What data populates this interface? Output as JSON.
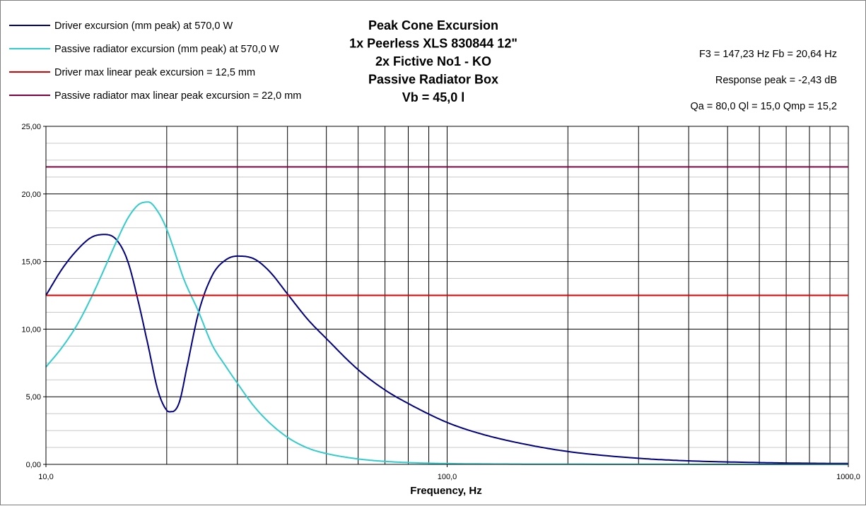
{
  "chart_data": {
    "type": "line",
    "title_lines": [
      "Peak Cone Excursion",
      "1x Peerless XLS 830844 12\"",
      "2x Fictive No1 - KO",
      "Passive Radiator Box",
      "Vb = 45,0 l"
    ],
    "xlabel": "Frequency, Hz",
    "ylabel": "",
    "x_scale": "log",
    "xlim": [
      10,
      1000
    ],
    "ylim": [
      0,
      25
    ],
    "grid": true,
    "legend_position": "top-left",
    "x_tick_labels": [
      {
        "value": 10,
        "label": "10,0"
      },
      {
        "value": 100,
        "label": "100,0"
      },
      {
        "value": 1000,
        "label": "1000,0"
      }
    ],
    "y_tick_labels": [
      {
        "value": 0,
        "label": "0,00"
      },
      {
        "value": 5,
        "label": "5,00"
      },
      {
        "value": 10,
        "label": "10,00"
      },
      {
        "value": 15,
        "label": "15,00"
      },
      {
        "value": 20,
        "label": "20,00"
      },
      {
        "value": 25,
        "label": "25,00"
      }
    ],
    "info_lines": [
      "F3 = 147,23 Hz  Fb = 20,64 Hz",
      "Response peak = -2,43 dB",
      "Qa = 80,0  Ql = 15,0  Qmp = 15,2"
    ],
    "series": [
      {
        "name": "Driver excursion (mm peak) at 570,0 W",
        "color": "#000080",
        "x": [
          10,
          11,
          12,
          13,
          14,
          15,
          16,
          17,
          18,
          19,
          20,
          20.6,
          21.5,
          22.5,
          24,
          26,
          28,
          30,
          33,
          36,
          40,
          45,
          50,
          60,
          70,
          80,
          100,
          120,
          150,
          200,
          300,
          400,
          600,
          800,
          1000
        ],
        "y": [
          12.5,
          14.5,
          15.9,
          16.8,
          17.0,
          16.6,
          15.0,
          12.0,
          8.7,
          5.5,
          4.0,
          3.9,
          4.6,
          7.3,
          11.2,
          14.0,
          15.1,
          15.4,
          15.2,
          14.3,
          12.6,
          10.7,
          9.3,
          7.0,
          5.5,
          4.5,
          3.1,
          2.3,
          1.6,
          0.95,
          0.45,
          0.26,
          0.13,
          0.08,
          0.06
        ]
      },
      {
        "name": "Passive radiator excursion (mm peak) at 570,0 W",
        "color": "#33CCCC",
        "x": [
          10,
          11,
          12,
          13,
          14,
          15,
          16,
          17,
          18,
          19,
          20,
          21,
          22,
          24,
          26,
          28,
          30,
          33,
          36,
          40,
          45,
          50,
          60,
          70,
          80,
          100,
          150,
          200,
          1000
        ],
        "y": [
          7.2,
          8.7,
          10.4,
          12.4,
          14.5,
          16.5,
          18.2,
          19.2,
          19.4,
          18.7,
          17.4,
          15.6,
          13.8,
          11.3,
          8.8,
          7.3,
          6.0,
          4.3,
          3.1,
          2.0,
          1.2,
          0.8,
          0.4,
          0.22,
          0.13,
          0.06,
          0.02,
          0.01,
          0.0
        ]
      },
      {
        "name": "Driver max linear peak excursion = 12,5 mm",
        "color": "#DD0000",
        "x": [
          10,
          1000
        ],
        "y": [
          12.5,
          12.5
        ]
      },
      {
        "name": "Passive radiator max linear peak excursion = 22,0 mm",
        "color": "#800040",
        "x": [
          10,
          1000
        ],
        "y": [
          22.0,
          22.0
        ]
      }
    ]
  }
}
